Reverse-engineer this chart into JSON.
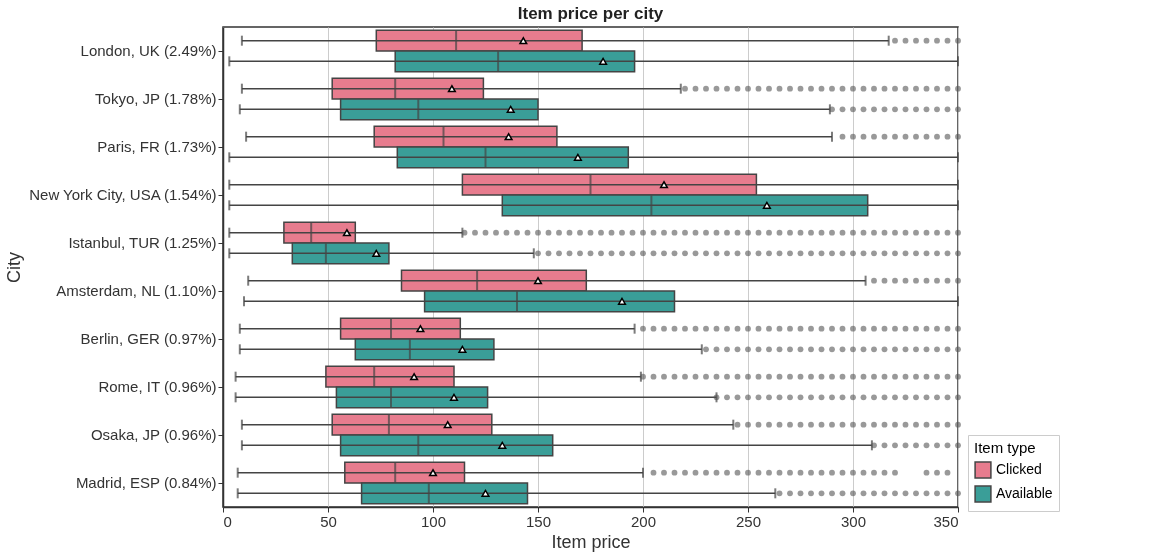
{
  "chart_data": {
    "type": "box",
    "orientation": "horizontal",
    "title": "Item price per city",
    "xlabel": "Item price",
    "ylabel": "City",
    "legend_title": "Item type",
    "legend": "bottom right",
    "grid": "x",
    "marker": "triangle",
    "categories": [
      "London, UK (2.49%)",
      "Tokyo, JP (1.78%)",
      "Paris, FR (1.73%)",
      "New York City, USA (1.54%)",
      "Istanbul, TUR (1.25%)",
      "Amsterdam, NL (1.10%)",
      "Berlin, GER (0.97%)",
      "Rome, IT (0.96%)",
      "Osaka, JP (0.96%)",
      "Madrid, ESP (0.84%)"
    ],
    "xlim": [
      0,
      350
    ],
    "xticks": [
      0,
      50,
      100,
      150,
      200,
      250,
      300,
      350
    ],
    "series": [
      {
        "name": "Clicked",
        "color": "#e77c8e",
        "boxes": [
          {
            "low": 9,
            "q1": 73,
            "median": 111,
            "q3": 171,
            "high": 317,
            "mean": 143,
            "outliers": [
              320,
              325,
              330,
              335,
              340,
              345,
              350
            ]
          },
          {
            "low": 9,
            "q1": 52,
            "median": 82,
            "q3": 124,
            "high": 218,
            "mean": 109,
            "outliers": [
              220,
              225,
              230,
              235,
              240,
              245,
              250,
              255,
              260,
              265,
              270,
              275,
              280,
              285,
              290,
              295,
              300,
              305,
              310,
              315,
              320,
              325,
              330,
              335,
              340,
              345,
              350
            ]
          },
          {
            "low": 11,
            "q1": 72,
            "median": 105,
            "q3": 159,
            "high": 290,
            "mean": 136,
            "outliers": [
              295,
              300,
              305,
              310,
              315,
              320,
              325,
              330,
              335,
              340,
              345,
              350
            ]
          },
          {
            "low": 3,
            "q1": 114,
            "median": 175,
            "q3": 254,
            "high": 350,
            "mean": 210
          },
          {
            "low": 3,
            "q1": 29,
            "median": 42,
            "q3": 63,
            "high": 114,
            "mean": 59,
            "outliers": [
              115,
              120,
              125,
              130,
              135,
              140,
              145,
              150,
              155,
              160,
              165,
              170,
              175,
              180,
              185,
              190,
              195,
              200,
              205,
              210,
              215,
              220,
              225,
              230,
              235,
              240,
              245,
              250,
              255,
              260,
              265,
              270,
              275,
              280,
              285,
              290,
              295,
              300,
              305,
              310,
              315,
              320,
              325,
              330,
              335,
              340,
              345,
              350
            ]
          },
          {
            "low": 12,
            "q1": 85,
            "median": 121,
            "q3": 173,
            "high": 306,
            "mean": 150,
            "outliers": [
              310,
              315,
              320,
              325,
              330,
              335,
              340,
              345,
              350
            ]
          },
          {
            "low": 8,
            "q1": 56,
            "median": 80,
            "q3": 113,
            "high": 196,
            "mean": 94,
            "outliers": [
              200,
              205,
              210,
              215,
              220,
              225,
              230,
              235,
              240,
              245,
              250,
              255,
              260,
              265,
              270,
              275,
              280,
              285,
              290,
              295,
              300,
              305,
              310,
              315,
              320,
              325,
              330,
              335,
              340,
              345,
              350
            ]
          },
          {
            "low": 6,
            "q1": 49,
            "median": 72,
            "q3": 110,
            "high": 199,
            "mean": 91,
            "outliers": [
              200,
              205,
              210,
              215,
              220,
              225,
              230,
              235,
              240,
              245,
              250,
              255,
              260,
              265,
              270,
              275,
              280,
              285,
              290,
              295,
              300,
              305,
              310,
              315,
              320,
              325,
              330,
              335,
              340,
              345,
              350
            ]
          },
          {
            "low": 9,
            "q1": 52,
            "median": 79,
            "q3": 128,
            "high": 243,
            "mean": 107,
            "outliers": [
              245,
              250,
              255,
              260,
              265,
              270,
              275,
              280,
              285,
              290,
              295,
              300,
              305,
              310,
              315,
              320,
              325,
              330,
              335,
              340,
              345,
              350
            ]
          },
          {
            "low": 7,
            "q1": 58,
            "median": 82,
            "q3": 115,
            "high": 200,
            "mean": 100,
            "outliers": [
              205,
              210,
              215,
              220,
              225,
              230,
              235,
              240,
              245,
              250,
              255,
              260,
              265,
              270,
              275,
              280,
              285,
              290,
              295,
              300,
              305,
              310,
              315,
              320,
              335,
              340,
              345
            ]
          }
        ]
      },
      {
        "name": "Available",
        "color": "#3a9e98",
        "boxes": [
          {
            "low": 3,
            "q1": 82,
            "median": 131,
            "q3": 196,
            "high": 350,
            "mean": 181
          },
          {
            "low": 8,
            "q1": 56,
            "median": 93,
            "q3": 150,
            "high": 289,
            "mean": 137,
            "outliers": [
              290,
              295,
              300,
              305,
              310,
              315,
              320,
              325,
              330,
              335,
              340,
              345,
              350
            ]
          },
          {
            "low": 3,
            "q1": 83,
            "median": 125,
            "q3": 193,
            "high": 350,
            "mean": 169
          },
          {
            "low": 3,
            "q1": 133,
            "median": 204,
            "q3": 307,
            "high": 350,
            "mean": 259
          },
          {
            "low": 3,
            "q1": 33,
            "median": 49,
            "q3": 79,
            "high": 148,
            "mean": 73,
            "outliers": [
              150,
              155,
              160,
              165,
              170,
              175,
              180,
              185,
              190,
              195,
              200,
              205,
              210,
              215,
              220,
              225,
              230,
              235,
              240,
              245,
              250,
              255,
              260,
              265,
              270,
              275,
              280,
              285,
              290,
              295,
              300,
              305,
              310,
              315,
              320,
              325,
              330,
              335,
              340,
              345,
              350
            ]
          },
          {
            "low": 10,
            "q1": 96,
            "median": 140,
            "q3": 215,
            "high": 350,
            "mean": 190
          },
          {
            "low": 8,
            "q1": 63,
            "median": 89,
            "q3": 129,
            "high": 228,
            "mean": 114,
            "outliers": [
              230,
              235,
              240,
              245,
              250,
              255,
              260,
              265,
              270,
              275,
              280,
              285,
              290,
              295,
              300,
              305,
              310,
              315,
              320,
              325,
              330,
              335,
              340,
              345,
              350
            ]
          },
          {
            "low": 6,
            "q1": 54,
            "median": 80,
            "q3": 126,
            "high": 235,
            "mean": 110,
            "outliers": [
              235,
              240,
              245,
              250,
              255,
              260,
              265,
              270,
              275,
              280,
              285,
              290,
              295,
              300,
              305,
              310,
              315,
              320,
              325,
              330,
              335,
              340,
              345,
              350
            ]
          },
          {
            "low": 9,
            "q1": 56,
            "median": 93,
            "q3": 157,
            "high": 309,
            "mean": 133,
            "outliers": [
              310,
              315,
              320,
              325,
              330,
              335,
              340,
              345,
              350
            ]
          },
          {
            "low": 7,
            "q1": 66,
            "median": 98,
            "q3": 145,
            "high": 263,
            "mean": 125,
            "outliers": [
              265,
              270,
              275,
              280,
              285,
              290,
              295,
              300,
              305,
              310,
              315,
              320,
              325,
              330,
              335,
              340,
              345,
              350
            ]
          }
        ]
      }
    ]
  }
}
